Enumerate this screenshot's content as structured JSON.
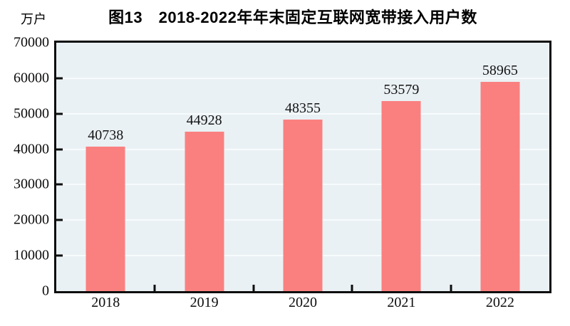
{
  "figure": {
    "title": "图13　2018-2022年年末固定互联网宽带接入用户数",
    "unit_label": "万户"
  },
  "chart_data": {
    "type": "bar",
    "title": "图13　2018-2022年年末固定互联网宽带接入用户数",
    "unit_label": "万户",
    "categories": [
      "2018",
      "2019",
      "2020",
      "2021",
      "2022"
    ],
    "values": [
      40738,
      44928,
      48355,
      53579,
      58965
    ],
    "xlabel": "",
    "ylabel": "万户",
    "ylim": [
      0,
      70000
    ],
    "yticks": [
      0,
      10000,
      20000,
      30000,
      40000,
      50000,
      60000,
      70000
    ],
    "grid": true,
    "legend": false,
    "value_labels_shown": true,
    "colors": {
      "bar": "#FA8080",
      "plot_background": "#EAF1F4",
      "gridline": "#F7FBFC",
      "axis": "#0D0D0D",
      "text": "#0D0D0D",
      "page_background": "#FFFFFF"
    }
  }
}
